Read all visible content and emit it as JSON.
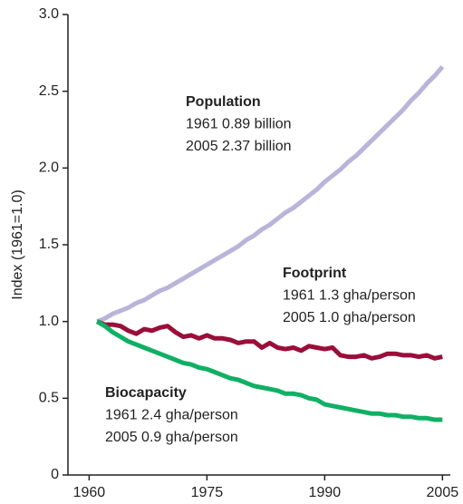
{
  "chart_data": {
    "type": "line",
    "ylabel": "Index (1961=1.0)",
    "x": [
      1961,
      1962,
      1963,
      1964,
      1965,
      1966,
      1967,
      1968,
      1969,
      1970,
      1971,
      1972,
      1973,
      1974,
      1975,
      1976,
      1977,
      1978,
      1979,
      1980,
      1981,
      1982,
      1983,
      1984,
      1985,
      1986,
      1987,
      1988,
      1989,
      1990,
      1991,
      1992,
      1993,
      1994,
      1995,
      1996,
      1997,
      1998,
      1999,
      2000,
      2001,
      2002,
      2003,
      2004,
      2005
    ],
    "series": [
      {
        "name": "Population",
        "color": "#b9b4d9",
        "note": [
          "1961 0.89 billion",
          "2005 2.37 billion"
        ],
        "values": [
          1.0,
          1.02,
          1.05,
          1.07,
          1.09,
          1.12,
          1.14,
          1.17,
          1.2,
          1.22,
          1.25,
          1.28,
          1.31,
          1.34,
          1.37,
          1.4,
          1.43,
          1.46,
          1.49,
          1.53,
          1.56,
          1.6,
          1.63,
          1.67,
          1.71,
          1.74,
          1.78,
          1.82,
          1.86,
          1.91,
          1.95,
          1.99,
          2.04,
          2.08,
          2.13,
          2.18,
          2.23,
          2.28,
          2.33,
          2.38,
          2.44,
          2.49,
          2.55,
          2.6,
          2.66
        ]
      },
      {
        "name": "Footprint",
        "color": "#9b0e3a",
        "note": [
          "1961 1.3 gha/person",
          "2005 1.0 gha/person"
        ],
        "values": [
          1.0,
          0.98,
          0.98,
          0.97,
          0.94,
          0.92,
          0.95,
          0.94,
          0.96,
          0.97,
          0.93,
          0.9,
          0.91,
          0.89,
          0.91,
          0.89,
          0.89,
          0.88,
          0.86,
          0.87,
          0.87,
          0.83,
          0.86,
          0.83,
          0.82,
          0.83,
          0.81,
          0.84,
          0.83,
          0.82,
          0.83,
          0.78,
          0.77,
          0.77,
          0.78,
          0.76,
          0.77,
          0.79,
          0.79,
          0.78,
          0.78,
          0.77,
          0.78,
          0.76,
          0.77
        ]
      },
      {
        "name": "Biocapacity",
        "color": "#10b064",
        "note": [
          "1961 2.4 gha/person",
          "2005 0.9 gha/person"
        ],
        "values": [
          1.0,
          0.97,
          0.93,
          0.9,
          0.87,
          0.85,
          0.83,
          0.81,
          0.79,
          0.77,
          0.75,
          0.73,
          0.72,
          0.7,
          0.69,
          0.67,
          0.65,
          0.63,
          0.62,
          0.6,
          0.58,
          0.57,
          0.56,
          0.55,
          0.53,
          0.53,
          0.52,
          0.5,
          0.49,
          0.46,
          0.45,
          0.44,
          0.43,
          0.42,
          0.41,
          0.4,
          0.4,
          0.39,
          0.39,
          0.38,
          0.38,
          0.37,
          0.37,
          0.36,
          0.36
        ]
      }
    ],
    "xlim": [
      1957.3,
      2006
    ],
    "xticks": [
      1960,
      1975,
      1990,
      2005
    ],
    "ylim": [
      0,
      3.0
    ],
    "yticks": [
      0,
      0.5,
      {
        "value": 1.0,
        "label": "1.0"
      },
      1.5,
      {
        "value": 2.0,
        "label": "2.0"
      },
      2.5,
      {
        "value": 3.0,
        "label": "3.0"
      }
    ]
  }
}
